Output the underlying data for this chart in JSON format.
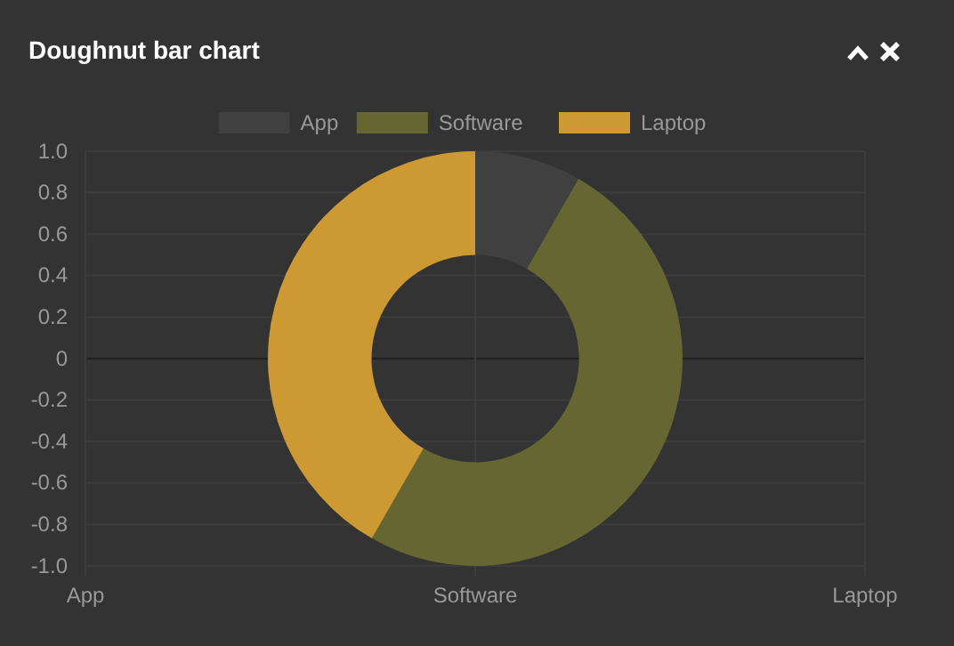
{
  "chart_data": [
    {
      "type": "bar",
      "title": "Doughnut bar chart",
      "categories": [
        "App",
        "Software",
        "Laptop"
      ],
      "values": [
        null,
        null,
        null
      ],
      "ylim": [
        -1,
        1
      ],
      "yticks": [
        {
          "value": -1,
          "label": "-1.0"
        },
        -0.8,
        -0.6,
        -0.4,
        -0.2,
        0,
        0.2,
        0.4,
        0.6,
        0.8,
        {
          "value": 1,
          "label": "1.0"
        }
      ],
      "grid": true
    },
    {
      "type": "donut",
      "categories": [
        "App",
        "Software",
        "Laptop"
      ],
      "values": [
        8.3,
        50,
        41.7
      ],
      "colors": [
        "#404040",
        "#666633",
        "#cc9933"
      ],
      "legend": "top"
    }
  ]
}
